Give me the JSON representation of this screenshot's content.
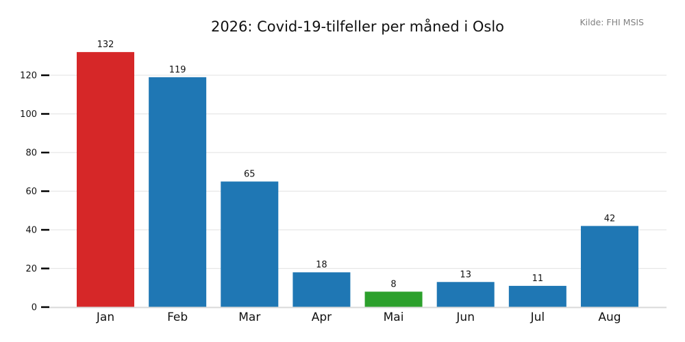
{
  "chart_data": {
    "type": "bar",
    "title": "2026: Covid-19-tilfeller per måned i Oslo",
    "source": "Kilde: FHI MSIS",
    "xlabel": "",
    "ylabel": "",
    "categories": [
      "Jan",
      "Feb",
      "Mar",
      "Apr",
      "Mai",
      "Jun",
      "Jul",
      "Aug"
    ],
    "values": [
      132,
      119,
      65,
      18,
      8,
      13,
      11,
      42
    ],
    "bar_colors": [
      "#d62728",
      "#1f77b4",
      "#1f77b4",
      "#1f77b4",
      "#2ca02c",
      "#1f77b4",
      "#1f77b4",
      "#1f77b4"
    ],
    "data_labels": [
      "132",
      "119",
      "65",
      "18",
      "8",
      "13",
      "11",
      "42"
    ],
    "yticks": [
      0,
      20,
      40,
      60,
      80,
      100,
      120
    ],
    "ylim": [
      0,
      137
    ],
    "grid": "horizontal",
    "legend": "none"
  }
}
